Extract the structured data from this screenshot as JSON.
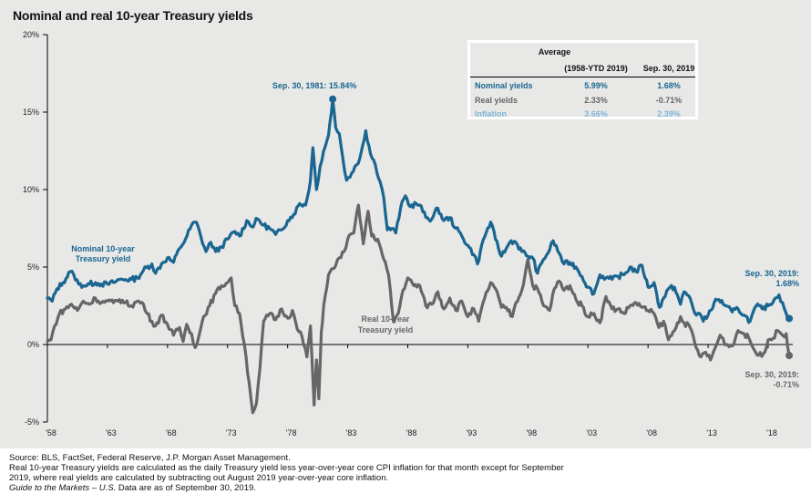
{
  "title": "Nominal and real 10-year Treasury yields",
  "colors": {
    "background": "#e8e8e7",
    "nominal": "#1a6690",
    "real": "#666666",
    "inflation": "#7fb6d6",
    "axis": "#000000"
  },
  "chart_data": {
    "type": "line",
    "title": "Nominal and real 10-year Treasury yields",
    "xlabel": "",
    "ylabel": "",
    "xlim": [
      1958,
      2019.75
    ],
    "ylim": [
      -5,
      20
    ],
    "grid": false,
    "y_ticks": [
      20,
      15,
      10,
      5,
      0,
      -5
    ],
    "y_tick_labels": [
      "20%",
      "15%",
      "10%",
      "5%",
      "0%",
      "-5%"
    ],
    "x_ticks": [
      1958,
      1963,
      1968,
      1973,
      1978,
      1983,
      1988,
      1993,
      1998,
      2003,
      2008,
      2013,
      2018
    ],
    "x_tick_labels": [
      "'58",
      "'63",
      "'68",
      "'73",
      "'78",
      "'83",
      "'88",
      "'93",
      "'98",
      "'03",
      "'08",
      "'13",
      "'18"
    ],
    "series": [
      {
        "name": "Nominal 10-year Treasury yield",
        "label_lines": [
          "Nominal 10-year",
          "Treasury yield"
        ],
        "color": "#1a6690",
        "x": [
          1958.0,
          1958.4,
          1958.8,
          1959.3,
          1959.9,
          1960.2,
          1960.6,
          1961.0,
          1961.5,
          1962.0,
          1962.5,
          1963.0,
          1963.5,
          1964.0,
          1964.5,
          1965.0,
          1965.5,
          1966.0,
          1966.7,
          1967.0,
          1967.5,
          1968.0,
          1968.5,
          1969.0,
          1969.5,
          1970.0,
          1970.4,
          1970.8,
          1971.2,
          1971.6,
          1972.0,
          1972.5,
          1973.0,
          1973.6,
          1974.0,
          1974.6,
          1975.0,
          1975.5,
          1976.0,
          1976.5,
          1977.0,
          1977.5,
          1978.0,
          1978.5,
          1979.0,
          1979.5,
          1979.9,
          1980.1,
          1980.4,
          1980.7,
          1981.0,
          1981.4,
          1981.75,
          1982.0,
          1982.3,
          1982.6,
          1982.9,
          1983.2,
          1983.6,
          1984.0,
          1984.5,
          1984.9,
          1985.3,
          1985.7,
          1986.0,
          1986.3,
          1986.7,
          1987.0,
          1987.4,
          1987.8,
          1988.2,
          1988.7,
          1989.0,
          1989.5,
          1990.0,
          1990.5,
          1991.0,
          1991.5,
          1992.0,
          1992.5,
          1993.0,
          1993.5,
          1993.8,
          1994.3,
          1994.9,
          1995.3,
          1995.8,
          1996.2,
          1996.6,
          1997.0,
          1997.5,
          1998.0,
          1998.4,
          1998.8,
          1999.3,
          1999.8,
          2000.1,
          2000.6,
          2001.0,
          2001.5,
          2002.0,
          2002.5,
          2003.0,
          2003.5,
          2004.0,
          2004.5,
          2005.0,
          2005.5,
          2006.0,
          2006.5,
          2007.0,
          2007.5,
          2008.0,
          2008.5,
          2008.95,
          2009.3,
          2009.7,
          2010.2,
          2010.7,
          2011.0,
          2011.5,
          2011.9,
          2012.3,
          2012.6,
          2013.0,
          2013.5,
          2013.9,
          2014.5,
          2015.0,
          2015.5,
          2016.0,
          2016.5,
          2017.0,
          2017.5,
          2018.0,
          2018.5,
          2018.9,
          2019.2,
          2019.5,
          2019.75
        ],
        "values": [
          3.0,
          2.8,
          3.6,
          4.0,
          4.7,
          4.5,
          3.9,
          3.8,
          3.9,
          4.0,
          3.9,
          3.9,
          4.0,
          4.2,
          4.2,
          4.2,
          4.3,
          4.8,
          5.2,
          4.6,
          5.2,
          5.6,
          5.3,
          6.2,
          6.8,
          7.7,
          7.9,
          6.9,
          6.0,
          6.6,
          6.0,
          6.3,
          6.8,
          7.3,
          7.0,
          8.0,
          7.6,
          8.1,
          7.7,
          7.5,
          7.1,
          7.4,
          8.0,
          8.4,
          9.1,
          9.0,
          10.6,
          12.7,
          10.0,
          11.5,
          12.5,
          13.5,
          15.84,
          14.0,
          13.6,
          12.0,
          10.6,
          10.8,
          11.5,
          12.0,
          13.8,
          12.3,
          11.6,
          10.5,
          9.5,
          7.4,
          7.5,
          7.2,
          8.8,
          9.6,
          8.9,
          9.1,
          9.0,
          8.2,
          8.1,
          8.8,
          8.0,
          8.2,
          7.5,
          7.0,
          6.4,
          5.8,
          5.2,
          6.8,
          7.9,
          6.8,
          5.7,
          6.2,
          6.7,
          6.6,
          6.0,
          5.7,
          5.6,
          4.6,
          5.5,
          6.1,
          6.7,
          5.9,
          5.2,
          5.3,
          5.0,
          4.4,
          3.7,
          3.3,
          4.5,
          4.3,
          4.2,
          4.4,
          4.5,
          5.0,
          4.7,
          5.1,
          3.7,
          4.0,
          2.4,
          3.0,
          3.6,
          3.7,
          2.6,
          3.4,
          3.0,
          2.0,
          2.0,
          1.5,
          1.9,
          2.7,
          2.9,
          2.5,
          2.1,
          2.3,
          1.9,
          1.5,
          2.5,
          2.3,
          2.5,
          2.9,
          3.2,
          2.7,
          2.0,
          1.68
        ]
      },
      {
        "name": "Real 10-year Treasury yield",
        "label_lines": [
          "Real 10-year",
          "Treasury yield"
        ],
        "color": "#666666",
        "x": [
          1958.0,
          1958.3,
          1958.6,
          1959.0,
          1959.5,
          1960.0,
          1960.5,
          1961.0,
          1961.5,
          1962.0,
          1962.5,
          1963.0,
          1963.5,
          1964.0,
          1964.5,
          1965.0,
          1965.5,
          1966.0,
          1966.3,
          1966.7,
          1967.0,
          1967.5,
          1968.0,
          1968.5,
          1969.0,
          1969.3,
          1969.6,
          1970.0,
          1970.3,
          1970.6,
          1971.0,
          1971.5,
          1972.0,
          1972.5,
          1973.0,
          1973.3,
          1973.6,
          1974.0,
          1974.4,
          1974.8,
          1975.1,
          1975.4,
          1975.7,
          1976.0,
          1976.5,
          1977.0,
          1977.5,
          1978.0,
          1978.4,
          1978.8,
          1979.2,
          1979.6,
          1979.9,
          1980.2,
          1980.4,
          1980.6,
          1980.8,
          1981.0,
          1981.4,
          1981.8,
          1982.0,
          1982.3,
          1982.7,
          1983.0,
          1983.5,
          1983.9,
          1984.3,
          1984.7,
          1985.0,
          1985.5,
          1986.0,
          1986.4,
          1986.8,
          1987.2,
          1987.6,
          1988.0,
          1988.5,
          1989.0,
          1989.5,
          1990.0,
          1990.5,
          1991.0,
          1991.5,
          1992.0,
          1992.5,
          1993.0,
          1993.5,
          1993.9,
          1994.4,
          1994.9,
          1995.3,
          1995.8,
          1996.2,
          1996.7,
          1997.0,
          1997.5,
          1998.0,
          1998.4,
          1998.8,
          1999.3,
          1999.8,
          2000.2,
          2000.6,
          2001.0,
          2001.5,
          2002.0,
          2002.5,
          2003.0,
          2003.5,
          2004.0,
          2004.5,
          2005.0,
          2005.5,
          2006.0,
          2006.5,
          2007.0,
          2007.5,
          2008.0,
          2008.5,
          2008.9,
          2009.3,
          2009.7,
          2010.2,
          2010.7,
          2011.0,
          2011.5,
          2012.0,
          2012.4,
          2012.8,
          2013.2,
          2013.6,
          2014.0,
          2014.5,
          2015.0,
          2015.5,
          2016.0,
          2016.4,
          2016.8,
          2017.2,
          2017.6,
          2018.0,
          2018.4,
          2018.8,
          2019.2,
          2019.5,
          2019.75
        ],
        "values": [
          0.2,
          0.3,
          1.2,
          2.0,
          2.3,
          2.6,
          2.2,
          2.8,
          2.6,
          3.0,
          2.7,
          2.8,
          2.7,
          2.9,
          2.7,
          2.5,
          2.8,
          2.6,
          2.0,
          1.5,
          1.2,
          1.9,
          1.3,
          0.6,
          1.1,
          0.2,
          1.3,
          0.7,
          -0.2,
          0.5,
          1.8,
          2.5,
          3.3,
          3.8,
          4.0,
          4.3,
          2.5,
          2.0,
          0.0,
          -2.5,
          -4.4,
          -3.8,
          -1.5,
          1.5,
          2.0,
          1.6,
          2.3,
          1.7,
          2.2,
          1.0,
          0.5,
          -0.8,
          1.2,
          -3.9,
          -1.0,
          -3.5,
          0.8,
          2.5,
          4.5,
          4.9,
          5.1,
          5.6,
          6.0,
          6.8,
          7.2,
          9.0,
          6.5,
          8.6,
          7.0,
          6.8,
          5.5,
          4.5,
          1.5,
          2.0,
          3.5,
          4.3,
          3.8,
          3.8,
          2.5,
          2.6,
          3.4,
          2.3,
          3.0,
          2.2,
          2.8,
          1.8,
          2.3,
          1.5,
          3.0,
          4.0,
          3.6,
          2.4,
          2.4,
          1.8,
          2.7,
          3.5,
          5.5,
          3.8,
          3.6,
          2.5,
          2.2,
          3.6,
          4.1,
          3.5,
          3.8,
          2.9,
          2.5,
          1.8,
          2.0,
          1.4,
          3.1,
          2.3,
          2.3,
          2.0,
          2.5,
          2.7,
          2.4,
          2.2,
          2.0,
          1.1,
          1.5,
          0.3,
          0.9,
          1.8,
          1.4,
          1.1,
          -0.2,
          -0.8,
          -0.5,
          -1.0,
          -0.2,
          0.6,
          0.0,
          -0.1,
          0.9,
          0.7,
          0.4,
          -0.3,
          -0.7,
          -0.6,
          0.3,
          0.4,
          0.9,
          0.6,
          0.7,
          -0.71
        ]
      }
    ],
    "annotations": [
      {
        "text": "Sep. 30, 1981: 15.84%",
        "x": 1981.75,
        "y": 15.84,
        "series": "nominal"
      },
      {
        "text_lines": [
          "Sep. 30, 2019:",
          "1.68%"
        ],
        "x": 2019.75,
        "y": 1.68,
        "series": "nominal"
      },
      {
        "text_lines": [
          "Sep. 30, 2019:",
          "-0.71%"
        ],
        "x": 2019.75,
        "y": -0.71,
        "series": "real"
      }
    ]
  },
  "stats_table": {
    "header_group": "Average",
    "columns": [
      "",
      "(1958-YTD 2019)",
      "Sep. 30, 2019"
    ],
    "rows": [
      {
        "label": "Nominal yields",
        "average": "5.99%",
        "current": "1.68%",
        "color": "#1a6690"
      },
      {
        "label": "Real yields",
        "average": "2.33%",
        "current": "-0.71%",
        "color": "#666666"
      },
      {
        "label": "Inflation",
        "average": "3.66%",
        "current": "2.39%",
        "color": "#7fb6d6"
      }
    ]
  },
  "footer": {
    "source": "Source: BLS, FactSet, Federal Reserve, J.P. Morgan Asset Management.",
    "note_line1": "Real 10-year Treasury yields are calculated as the daily Treasury yield less year-over-year core CPI inflation for that month except for September",
    "note_line2": "2019, where real yields are calculated by subtracting out August 2019 year-over-year core inflation.",
    "guide_italic": "Guide to the Markets – U.S.",
    "guide_rest": " Data are as of September 30, 2019."
  }
}
